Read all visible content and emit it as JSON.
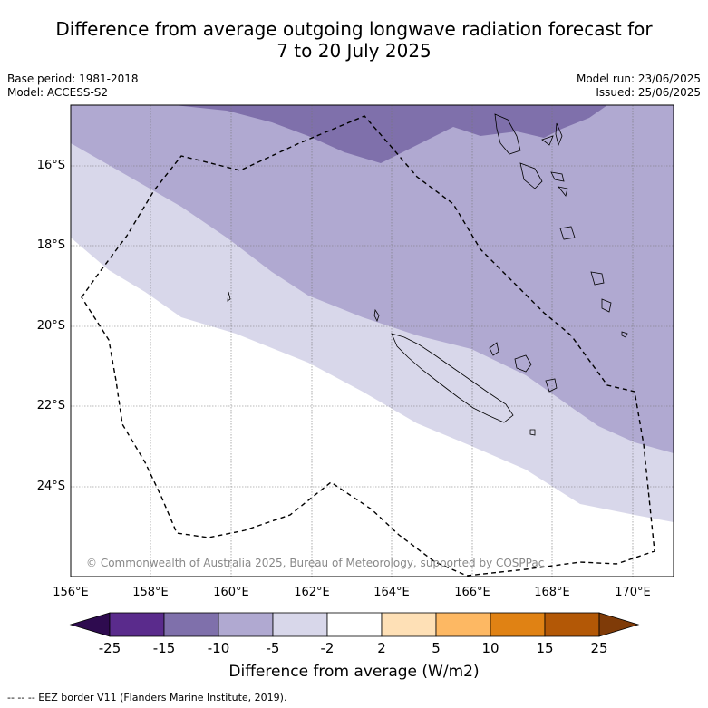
{
  "header": {
    "title_line1": "Difference from average outgoing longwave radiation forecast for",
    "title_line2": "7 to 20 July 2025",
    "base_period": "Base period: 1981-2018",
    "model": "Model: ACCESS-S2",
    "model_run": "Model run: 23/06/2025",
    "issued": "Issued: 25/06/2025"
  },
  "map": {
    "latitude_labels": [
      "16°S",
      "18°S",
      "20°S",
      "22°S",
      "24°S"
    ],
    "longitude_labels": [
      "156°E",
      "158°E",
      "160°E",
      "162°E",
      "164°E",
      "166°E",
      "168°E",
      "170°E"
    ],
    "copyright": "© Commonwealth of Australia 2025, Bureau of Meteorology, supported by COSPPac"
  },
  "colorbar": {
    "labels": [
      "-25",
      "-15",
      "-10",
      "-5",
      "-2",
      "2",
      "5",
      "10",
      "15",
      "25"
    ],
    "colors": [
      "#2e0b4f",
      "#5a2b8c",
      "#7f70ab",
      "#b0a9d1",
      "#d8d7ea",
      "#ffffff",
      "#fee0b6",
      "#fdb863",
      "#e08214",
      "#b35806",
      "#7f3b08"
    ],
    "title": "Difference from average (W/m2)"
  },
  "footnote": "-- -- -- EEZ border V11 (Flanders Marine Institute, 2019)."
}
